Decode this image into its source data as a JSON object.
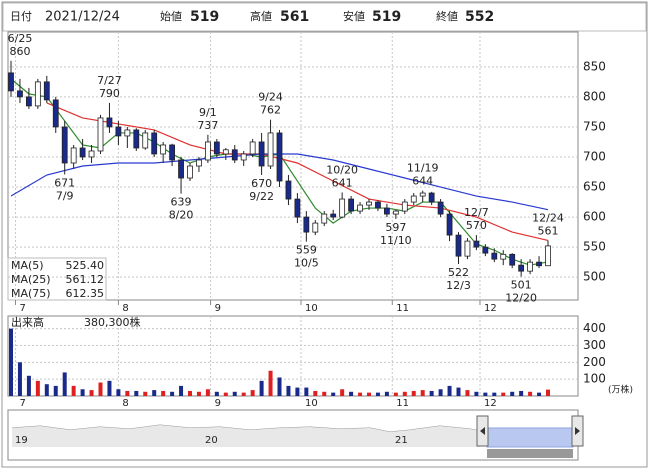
{
  "header": {
    "items": [
      {
        "label": "日付",
        "value": "2021/12/24",
        "color": "#000000"
      },
      {
        "label": "始値",
        "value": 519,
        "color": "#000000"
      },
      {
        "label": "高値",
        "value": 561,
        "color": "#d00000"
      },
      {
        "label": "安値",
        "value": 519,
        "color": "#008000"
      },
      {
        "label": "終値",
        "value": 552,
        "color": "#000000"
      }
    ]
  },
  "chart_data": {
    "type": "candlestick",
    "candles": [
      [
        840,
        860,
        800,
        810
      ],
      [
        810,
        830,
        790,
        800
      ],
      [
        800,
        815,
        780,
        785
      ],
      [
        785,
        830,
        780,
        825
      ],
      [
        825,
        835,
        790,
        795
      ],
      [
        795,
        800,
        740,
        750
      ],
      [
        750,
        760,
        671,
        690
      ],
      [
        690,
        720,
        680,
        715
      ],
      [
        715,
        730,
        695,
        700
      ],
      [
        700,
        720,
        690,
        710
      ],
      [
        710,
        770,
        705,
        765
      ],
      [
        765,
        790,
        740,
        750
      ],
      [
        750,
        760,
        720,
        735
      ],
      [
        735,
        750,
        715,
        745
      ],
      [
        745,
        748,
        710,
        715
      ],
      [
        715,
        745,
        712,
        740
      ],
      [
        740,
        745,
        700,
        705
      ],
      [
        705,
        725,
        690,
        720
      ],
      [
        720,
        722,
        685,
        695
      ],
      [
        695,
        700,
        639,
        665
      ],
      [
        665,
        690,
        660,
        685
      ],
      [
        685,
        700,
        675,
        695
      ],
      [
        695,
        737,
        690,
        725
      ],
      [
        725,
        730,
        700,
        705
      ],
      [
        705,
        715,
        695,
        712
      ],
      [
        712,
        720,
        690,
        695
      ],
      [
        695,
        710,
        685,
        705
      ],
      [
        705,
        730,
        700,
        725
      ],
      [
        725,
        740,
        670,
        685
      ],
      [
        685,
        762,
        680,
        740
      ],
      [
        740,
        745,
        650,
        660
      ],
      [
        660,
        670,
        620,
        630
      ],
      [
        630,
        640,
        590,
        600
      ],
      [
        600,
        610,
        559,
        575
      ],
      [
        575,
        595,
        570,
        590
      ],
      [
        590,
        610,
        585,
        605
      ],
      [
        605,
        612,
        595,
        600
      ],
      [
        600,
        641,
        598,
        630
      ],
      [
        630,
        635,
        605,
        610
      ],
      [
        610,
        625,
        605,
        620
      ],
      [
        620,
        630,
        612,
        625
      ],
      [
        625,
        628,
        610,
        615
      ],
      [
        615,
        622,
        600,
        605
      ],
      [
        605,
        612,
        597,
        610
      ],
      [
        610,
        630,
        605,
        625
      ],
      [
        625,
        640,
        620,
        635
      ],
      [
        635,
        644,
        625,
        640
      ],
      [
        640,
        642,
        620,
        625
      ],
      [
        625,
        630,
        600,
        605
      ],
      [
        605,
        610,
        560,
        570
      ],
      [
        570,
        575,
        522,
        535
      ],
      [
        535,
        565,
        530,
        560
      ],
      [
        560,
        570,
        545,
        550
      ],
      [
        550,
        555,
        535,
        540
      ],
      [
        540,
        548,
        525,
        530
      ],
      [
        530,
        545,
        520,
        538
      ],
      [
        538,
        540,
        515,
        520
      ],
      [
        520,
        530,
        501,
        510
      ],
      [
        510,
        530,
        505,
        525
      ],
      [
        525,
        535,
        515,
        519
      ],
      [
        519,
        561,
        519,
        552
      ]
    ],
    "up_color": "#ffffff",
    "down_color": "#1a2a8a",
    "edge_color": "#222222",
    "volume": [
      400,
      200,
      120,
      90,
      70,
      60,
      140,
      60,
      40,
      35,
      80,
      90,
      40,
      30,
      30,
      25,
      35,
      30,
      25,
      60,
      30,
      25,
      40,
      25,
      20,
      25,
      20,
      35,
      90,
      150,
      110,
      60,
      50,
      50,
      30,
      25,
      20,
      40,
      25,
      20,
      20,
      20,
      25,
      20,
      25,
      30,
      35,
      30,
      40,
      60,
      50,
      35,
      25,
      20,
      20,
      20,
      25,
      30,
      25,
      20,
      38.03
    ],
    "volume_up_color": "#e02020",
    "volume_down_color": "#1a2a8a",
    "ylim": [
      462,
      908
    ],
    "yticks": [
      500,
      550,
      600,
      650,
      700,
      750,
      800,
      850
    ],
    "volume_ylim": [
      0,
      475
    ],
    "volume_yticks": [
      100,
      200,
      300,
      400
    ],
    "volume_title": "出来高",
    "volume_label": "380,300株",
    "volume_unit": "(万株)",
    "xticks": [
      {
        "value": 0.5,
        "label": "7"
      },
      {
        "value": 12,
        "label": "8"
      },
      {
        "value": 22.3,
        "label": "9"
      },
      {
        "value": 32.4,
        "label": "10"
      },
      {
        "value": 42.6,
        "label": "11"
      },
      {
        "value": 52.4,
        "label": "12"
      }
    ],
    "grid": true,
    "series": [
      {
        "name": "MA(5)",
        "label": "525.40",
        "color": "#2e8b2e",
        "x": [
          0,
          2,
          4,
          6,
          8,
          10,
          12,
          14,
          16,
          18,
          20,
          22,
          24,
          26,
          28,
          30,
          32,
          34,
          36,
          38,
          40,
          42,
          44,
          46,
          48,
          50,
          52,
          54,
          56,
          58,
          60
        ],
        "values": [
          830,
          805,
          800,
          760,
          720,
          715,
          740,
          740,
          725,
          705,
          690,
          700,
          705,
          705,
          700,
          705,
          660,
          615,
          590,
          610,
          615,
          615,
          610,
          625,
          625,
          590,
          555,
          545,
          530,
          520,
          525.4
        ]
      },
      {
        "name": "MA(25)",
        "label": "561.12",
        "color": "#e03030",
        "x": [
          4,
          8,
          12,
          16,
          20,
          24,
          28,
          32,
          36,
          40,
          44,
          48,
          52,
          56,
          60
        ],
        "values": [
          790,
          765,
          755,
          745,
          720,
          705,
          705,
          690,
          660,
          630,
          620,
          615,
          600,
          575,
          561.12
        ]
      },
      {
        "name": "MA(75)",
        "label": "612.35",
        "color": "#2a3ad0",
        "x": [
          0,
          4,
          8,
          12,
          16,
          20,
          24,
          28,
          32,
          36,
          40,
          44,
          48,
          52,
          56,
          60
        ],
        "values": [
          635,
          670,
          685,
          690,
          690,
          695,
          700,
          705,
          705,
          695,
          680,
          665,
          650,
          635,
          625,
          612.35
        ]
      }
    ],
    "annotations": [
      {
        "index": 0,
        "date": "6/25",
        "value": 860,
        "side": "above"
      },
      {
        "index": 11,
        "date": "7/27",
        "value": 790,
        "side": "above"
      },
      {
        "index": 6,
        "date": "7/9",
        "value": 671,
        "side": "below"
      },
      {
        "index": 19,
        "date": "8/20",
        "value": 639,
        "side": "below"
      },
      {
        "index": 22,
        "date": "9/1",
        "value": 737,
        "side": "above"
      },
      {
        "index": 29,
        "date": "9/24",
        "value": 762,
        "side": "above"
      },
      {
        "index": 28,
        "date": "9/22",
        "value": 670,
        "side": "below"
      },
      {
        "index": 33,
        "date": "10/5",
        "value": 559,
        "side": "below"
      },
      {
        "index": 37,
        "date": "10/20",
        "value": 641,
        "side": "above"
      },
      {
        "index": 43,
        "date": "11/10",
        "value": 597,
        "side": "below"
      },
      {
        "index": 46,
        "date": "11/19",
        "value": 644,
        "side": "above"
      },
      {
        "index": 52,
        "date": "12/7",
        "value": 570,
        "side": "above"
      },
      {
        "index": 50,
        "date": "12/3",
        "value": 522,
        "side": "below"
      },
      {
        "index": 57,
        "date": "12/20",
        "value": 501,
        "side": "below"
      },
      {
        "index": 60,
        "date": "12/24",
        "value": 561,
        "side": "above"
      }
    ]
  },
  "navigator": {
    "labels": [
      "19",
      "20",
      "21"
    ]
  }
}
